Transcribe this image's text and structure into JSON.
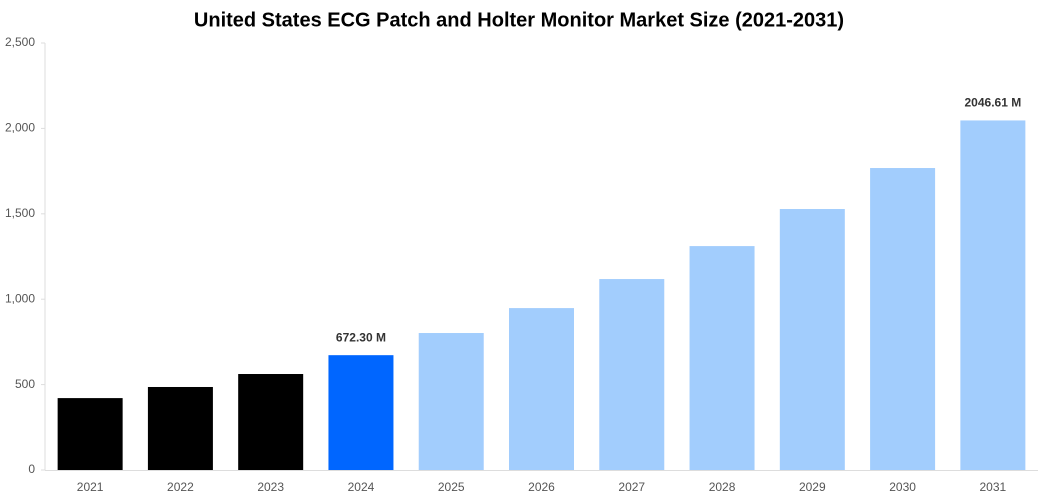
{
  "chart_data": {
    "type": "bar",
    "title": "United States ECG Patch and Holter Monitor Market Size (2021-2031)",
    "categories": [
      "2021",
      "2022",
      "2023",
      "2024",
      "2025",
      "2026",
      "2027",
      "2028",
      "2029",
      "2030",
      "2031"
    ],
    "values": [
      421,
      486,
      562,
      672.3,
      802,
      948,
      1118,
      1311,
      1528,
      1768,
      2046.61
    ],
    "value_labels": [
      null,
      null,
      null,
      "672.30 M",
      null,
      null,
      null,
      null,
      null,
      null,
      "2046.61 M"
    ],
    "colors": [
      "#000000",
      "#000000",
      "#000000",
      "#0066ff",
      "#a2cdfd",
      "#a2cdfd",
      "#a2cdfd",
      "#a2cdfd",
      "#a2cdfd",
      "#a2cdfd",
      "#a2cdfd"
    ],
    "ylim": [
      0,
      2500
    ],
    "yticks": [
      0,
      500,
      {
        "value": 1000,
        "label": "1,000"
      },
      {
        "value": 1500,
        "label": "1,500"
      },
      {
        "value": 2000,
        "label": "2,000"
      },
      {
        "value": 2500,
        "label": "2,500"
      }
    ],
    "grid": false
  }
}
